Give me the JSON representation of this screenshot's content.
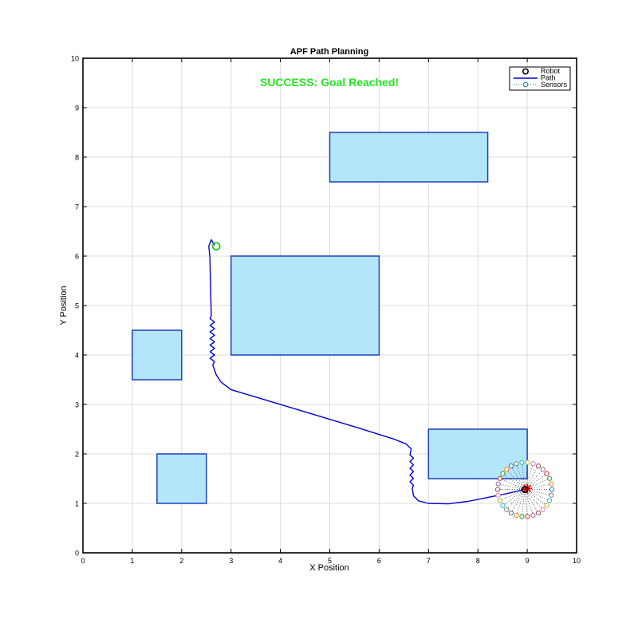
{
  "chart_data": {
    "type": "scatter",
    "title": "APF Path Planning",
    "xlabel": "X Position",
    "ylabel": "Y Position",
    "xlim": [
      0,
      10
    ],
    "ylim": [
      0,
      10
    ],
    "x_ticks": [
      "0",
      "1",
      "2",
      "3",
      "4",
      "5",
      "6",
      "7",
      "8",
      "9",
      "10"
    ],
    "y_ticks": [
      "0",
      "1",
      "2",
      "3",
      "4",
      "5",
      "6",
      "7",
      "8",
      "9",
      "10"
    ],
    "grid": true,
    "legend_position": "top-right",
    "status_text": "SUCCESS: Goal Reached!",
    "legend": [
      {
        "label": "Robot"
      },
      {
        "label": "Path"
      },
      {
        "label": "Sensors"
      }
    ],
    "obstacles": [
      {
        "x0": 5,
        "y0": 7.5,
        "x1": 8.2,
        "y1": 8.5
      },
      {
        "x0": 3,
        "y0": 4,
        "x1": 6,
        "y1": 6
      },
      {
        "x0": 1,
        "y0": 3.5,
        "x1": 2,
        "y1": 4.5
      },
      {
        "x0": 1.5,
        "y0": 1,
        "x1": 2.5,
        "y1": 2
      },
      {
        "x0": 7,
        "y0": 1.5,
        "x1": 9,
        "y1": 2.5
      }
    ],
    "start": {
      "x": 9,
      "y": 1.3
    },
    "goal": {
      "x": 2.7,
      "y": 6.2
    },
    "robot": {
      "x": 8.95,
      "y": 1.28
    },
    "sensor_radius": 0.55,
    "sensor_count": 30,
    "path_anchors": [
      [
        8.95,
        1.28
      ],
      [
        8.6,
        1.2
      ],
      [
        8.2,
        1.12
      ],
      [
        7.8,
        1.04
      ],
      [
        7.4,
        0.99
      ],
      [
        7.0,
        1.0
      ],
      [
        6.8,
        1.05
      ],
      [
        6.7,
        1.15
      ],
      [
        6.67,
        1.3
      ],
      [
        6.65,
        2.1
      ],
      [
        6.55,
        2.2
      ],
      [
        6.3,
        2.3
      ],
      [
        5.5,
        2.55
      ],
      [
        4.5,
        2.85
      ],
      [
        3.5,
        3.15
      ],
      [
        3.0,
        3.3
      ],
      [
        2.8,
        3.45
      ],
      [
        2.7,
        3.6
      ],
      [
        2.63,
        3.8
      ],
      [
        2.6,
        4.8
      ],
      [
        2.57,
        6.0
      ],
      [
        2.55,
        6.2
      ],
      [
        2.6,
        6.33
      ],
      [
        2.67,
        6.22
      ]
    ],
    "path_wiggles": [
      {
        "x": 6.66,
        "y0": 1.3,
        "y1": 2.05,
        "amp": 0.035,
        "n": 10
      },
      {
        "x": 2.62,
        "y0": 3.8,
        "y1": 4.8,
        "amp": 0.045,
        "n": 14
      }
    ],
    "colors": {
      "obstacle_fill": "#b3e6fa",
      "obstacle_edge": "#1f3fbf",
      "path": "#0000d0",
      "goal": "#22c922",
      "status": "#22e622",
      "start": "#ff0000",
      "robot": "#000000",
      "sensor_palette": [
        "#1f77b4",
        "#ff7f0e",
        "#2ca02c",
        "#d62728",
        "#9467bd",
        "#8c564b",
        "#e377c2",
        "#bcbd22",
        "#17becf",
        "#7f7f7f"
      ]
    }
  }
}
